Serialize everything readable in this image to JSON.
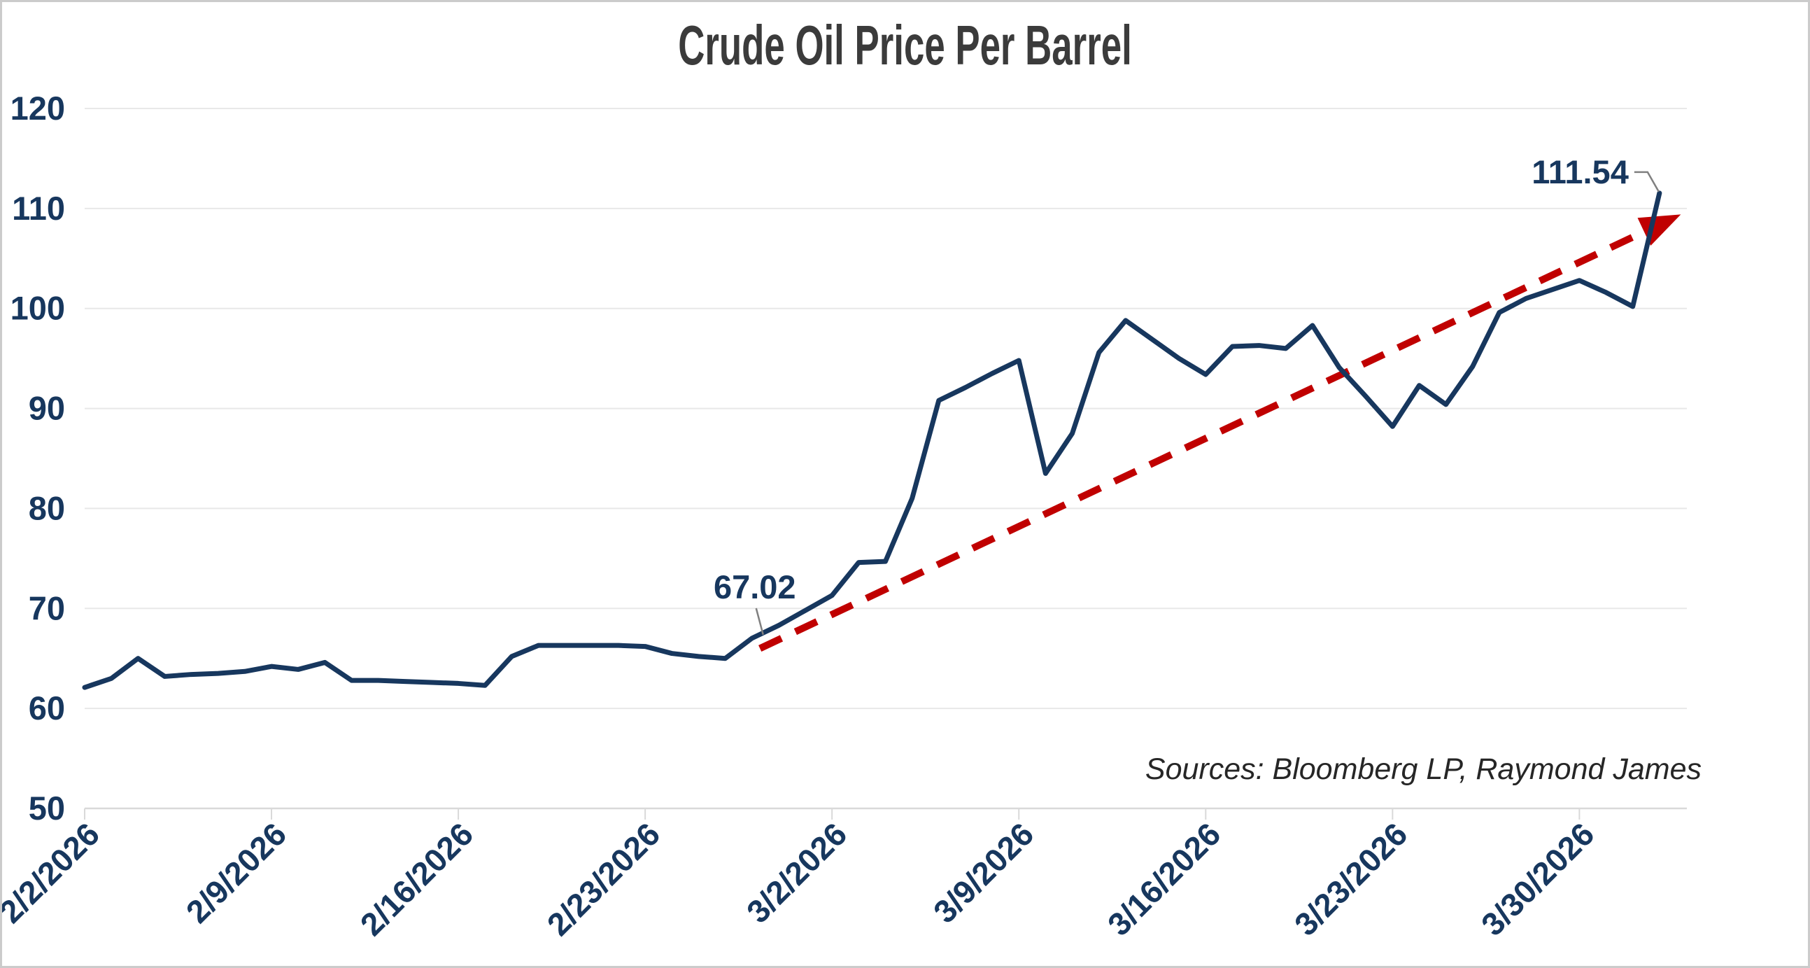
{
  "title": "Crude Oil Price Per Barrel",
  "sources_note": "Sources: Bloomberg LP, Raymond James",
  "colors": {
    "line": "#17375e",
    "trend": "#c00000",
    "grid": "#e8e8e8",
    "axis": "#d9d9d9",
    "tick_label": "#17375e",
    "title": "#3b3b3b",
    "leader": "#808080",
    "frame_border": "#cbcbcb"
  },
  "chart_data": {
    "type": "line",
    "title": "Crude Oil Price Per Barrel",
    "xlabel": "",
    "ylabel": "",
    "ylim": [
      50,
      120
    ],
    "y_ticks": [
      50,
      60,
      70,
      80,
      90,
      100,
      110,
      120
    ],
    "x_tick_labels": [
      "2/2/2026",
      "2/9/2026",
      "2/16/2026",
      "2/23/2026",
      "3/2/2026",
      "3/9/2026",
      "3/16/2026",
      "3/23/2026",
      "3/30/2026"
    ],
    "x_tick_day_indices": [
      0,
      7,
      14,
      21,
      28,
      35,
      42,
      49,
      56
    ],
    "grid": "horizontal",
    "legend": "none",
    "series": [
      {
        "name": "Crude Oil Price Per Barrel",
        "color": "#17375e",
        "values": [
          62.1,
          63.0,
          65.0,
          63.2,
          63.4,
          63.5,
          63.7,
          64.2,
          63.9,
          64.6,
          62.8,
          62.8,
          62.7,
          62.6,
          62.5,
          62.3,
          65.2,
          66.3,
          66.3,
          66.3,
          66.3,
          66.2,
          65.5,
          65.2,
          65.0,
          67.02,
          68.3,
          69.8,
          71.3,
          74.6,
          74.7,
          81.0,
          90.8,
          92.1,
          93.5,
          94.8,
          83.5,
          87.5,
          95.6,
          98.8,
          96.9,
          95.0,
          93.4,
          96.2,
          96.3,
          96.0,
          98.3,
          94.1,
          91.2,
          88.2,
          92.3,
          90.4,
          94.2,
          99.6,
          101.0,
          101.9,
          102.8,
          101.6,
          100.2,
          111.54
        ]
      }
    ],
    "annotated_points": [
      {
        "day": 25,
        "value": 67.02,
        "label": "67.02"
      },
      {
        "day": 59,
        "value": 111.54,
        "label": "111.54"
      }
    ],
    "trend": {
      "style": "dashed-arrow",
      "color": "#c00000",
      "from": {
        "day": 25.3,
        "value": 66.0
      },
      "to": {
        "day": 59.8,
        "value": 109.4
      }
    }
  }
}
